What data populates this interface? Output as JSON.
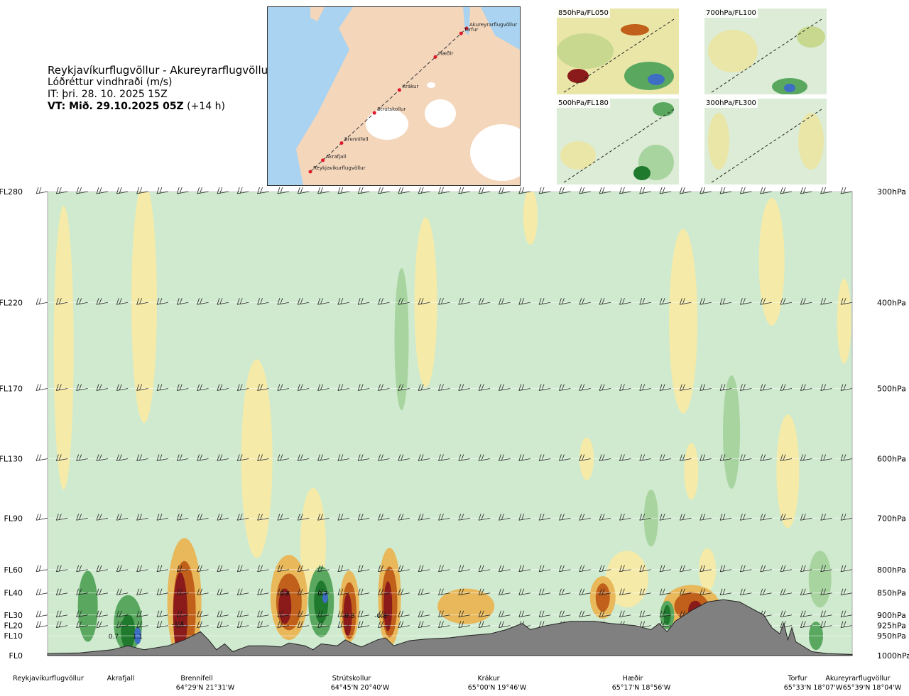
{
  "header": {
    "route": "Reykjavíkurflugvöllur - Akureyrarflugvöllur",
    "parameter": "Lóðréttur vindhraði (m/s)",
    "it": "IT: þri. 28. 10. 2025 15Z",
    "vt_bold": "VT: Mið. 29.10.2025 05Z",
    "vt_rest": " (+14 h)"
  },
  "map": {
    "waypoints": [
      "Akureyrarflugvöllur",
      "Torfur",
      "Hæðir",
      "Krákur",
      "Strútskollur",
      "Brennifell",
      "Akrafjall",
      "Reykjavíkurflugvöllur"
    ],
    "colors": {
      "land": "#f4d9c0",
      "sea": "#a9d3f0",
      "ice": "#ffffff",
      "route": "#e0192b"
    }
  },
  "panels": [
    {
      "label": "850hPa/FL050"
    },
    {
      "label": "700hPa/FL100"
    },
    {
      "label": "500hPa/FL180"
    },
    {
      "label": "300hPa/FL300"
    }
  ],
  "chart_data": {
    "type": "heatmap",
    "title": "Lóðréttur vindhraði (m/s)",
    "y_axis_left": [
      {
        "label": "FL280",
        "hpa": 300
      },
      {
        "label": "FL220",
        "hpa": 400
      },
      {
        "label": "FL170",
        "hpa": 500
      },
      {
        "label": "FL130",
        "hpa": 600
      },
      {
        "label": "FL90",
        "hpa": 700
      },
      {
        "label": "FL60",
        "hpa": 800
      },
      {
        "label": "FL40",
        "hpa": 850
      },
      {
        "label": "FL30",
        "hpa": 900
      },
      {
        "label": "FL20",
        "hpa": 925
      },
      {
        "label": "FL10",
        "hpa": 950
      },
      {
        "label": "FL0",
        "hpa": 1000
      }
    ],
    "y_axis_right": [
      "300hPa",
      "400hPa",
      "500hPa",
      "600hPa",
      "700hPa",
      "800hPa",
      "850hPa",
      "900hPa",
      "925hPa",
      "950hPa",
      "1000hPa"
    ],
    "ylim_hpa": [
      1000,
      300
    ],
    "x_locations": [
      {
        "name": "Reykjavíkurflugvöllur",
        "coord": "",
        "x": 0.0
      },
      {
        "name": "Akrafjall",
        "coord": "",
        "x": 0.09
      },
      {
        "name": "Brennifell",
        "coord": "64°29'N 21°31'W",
        "x": 0.185
      },
      {
        "name": "Strútskollur",
        "coord": "64°45'N 20°40'W",
        "x": 0.385
      },
      {
        "name": "Krákur",
        "coord": "65°00'N 19°46'W",
        "x": 0.56
      },
      {
        "name": "Hæðir",
        "coord": "65°17'N 18°56'W",
        "x": 0.76
      },
      {
        "name": "Torfur",
        "coord": "65°33'N 18°07'W",
        "x": 0.96
      },
      {
        "name": "Akureyrarflugvöllur",
        "coord": "65°39'N 18°04'W",
        "x": 1.0
      }
    ],
    "contour_labels": [
      {
        "text": "0.7",
        "x": 0.082,
        "hpa": 950
      },
      {
        "text": "1.1",
        "x": 0.112,
        "hpa": 950
      },
      {
        "text": "0.8",
        "x": 0.295,
        "hpa": 850
      },
      {
        "text": "0.7",
        "x": 0.342,
        "hpa": 850
      },
      {
        "text": "-0.8",
        "x": 0.374,
        "hpa": 900
      },
      {
        "text": "-0.8",
        "x": 0.414,
        "hpa": 900
      },
      {
        "text": "-1.4",
        "x": 0.162,
        "hpa": 920
      }
    ],
    "colors": {
      "strong_down": "#8b1a1a",
      "down2": "#c0601a",
      "down1": "#e8b85a",
      "down0": "#f5eaa8",
      "neutral": "#cfeacf",
      "up0": "#a8d4a0",
      "up1": "#5aa860",
      "up2": "#1f7a2e",
      "strong_up": "#3d6ec4",
      "terrain": "#808080"
    },
    "grid": false
  }
}
